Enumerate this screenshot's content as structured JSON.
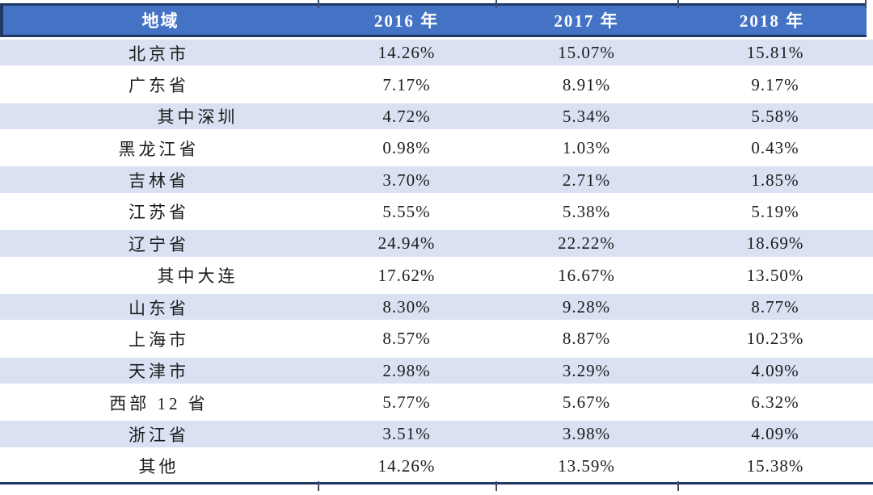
{
  "colors": {
    "header_bg": "#4472c4",
    "header_text": "#ffffff",
    "dark_border": "#1f3864",
    "alt_row_bg": "#d9e1f2",
    "body_text": "#1c1c1c"
  },
  "table": {
    "header": {
      "region": "地域",
      "years": [
        "2016 年",
        "2017 年",
        "2018 年"
      ]
    },
    "rows": [
      {
        "region": "北京市",
        "indent": false,
        "values": [
          "14.26%",
          "15.07%",
          "15.81%"
        ]
      },
      {
        "region": "广东省",
        "indent": false,
        "values": [
          "7.17%",
          "8.91%",
          "9.17%"
        ]
      },
      {
        "region": "其中深圳",
        "indent": true,
        "values": [
          "4.72%",
          "5.34%",
          "5.58%"
        ]
      },
      {
        "region": "黑龙江省",
        "indent": false,
        "values": [
          "0.98%",
          "1.03%",
          "0.43%"
        ]
      },
      {
        "region": "吉林省",
        "indent": false,
        "values": [
          "3.70%",
          "2.71%",
          "1.85%"
        ]
      },
      {
        "region": "江苏省",
        "indent": false,
        "values": [
          "5.55%",
          "5.38%",
          "5.19%"
        ]
      },
      {
        "region": "辽宁省",
        "indent": false,
        "values": [
          "24.94%",
          "22.22%",
          "18.69%"
        ]
      },
      {
        "region": "其中大连",
        "indent": true,
        "values": [
          "17.62%",
          "16.67%",
          "13.50%"
        ]
      },
      {
        "region": "山东省",
        "indent": false,
        "values": [
          "8.30%",
          "9.28%",
          "8.77%"
        ]
      },
      {
        "region": "上海市",
        "indent": false,
        "values": [
          "8.57%",
          "8.87%",
          "10.23%"
        ]
      },
      {
        "region": "天津市",
        "indent": false,
        "values": [
          "2.98%",
          "3.29%",
          "4.09%"
        ]
      },
      {
        "region": "西部 12 省",
        "indent": false,
        "values": [
          "5.77%",
          "5.67%",
          "6.32%"
        ]
      },
      {
        "region": "浙江省",
        "indent": false,
        "values": [
          "3.51%",
          "3.98%",
          "4.09%"
        ]
      },
      {
        "region": "其他",
        "indent": false,
        "values": [
          "14.26%",
          "13.59%",
          "15.38%"
        ]
      }
    ]
  },
  "chart_data": {
    "type": "table",
    "title": "",
    "unit": "%",
    "categories": [
      "北京市",
      "广东省",
      "其中深圳",
      "黑龙江省",
      "吉林省",
      "江苏省",
      "辽宁省",
      "其中大连",
      "山东省",
      "上海市",
      "天津市",
      "西部 12 省",
      "浙江省",
      "其他"
    ],
    "series": [
      {
        "name": "2016 年",
        "values": [
          14.26,
          7.17,
          4.72,
          0.98,
          3.7,
          5.55,
          24.94,
          17.62,
          8.3,
          8.57,
          2.98,
          5.77,
          3.51,
          14.26
        ]
      },
      {
        "name": "2017 年",
        "values": [
          15.07,
          8.91,
          5.34,
          1.03,
          2.71,
          5.38,
          22.22,
          16.67,
          9.28,
          8.87,
          3.29,
          5.67,
          3.98,
          13.59
        ]
      },
      {
        "name": "2018 年",
        "values": [
          15.81,
          9.17,
          5.58,
          0.43,
          1.85,
          5.19,
          18.69,
          13.5,
          8.77,
          10.23,
          4.09,
          6.32,
          4.09,
          15.38
        ]
      }
    ],
    "layout": {
      "header_fill": "#4472c4",
      "banded_rows": true,
      "band_fill": "#d9e1f2",
      "outer_border": "#1f3864"
    }
  }
}
